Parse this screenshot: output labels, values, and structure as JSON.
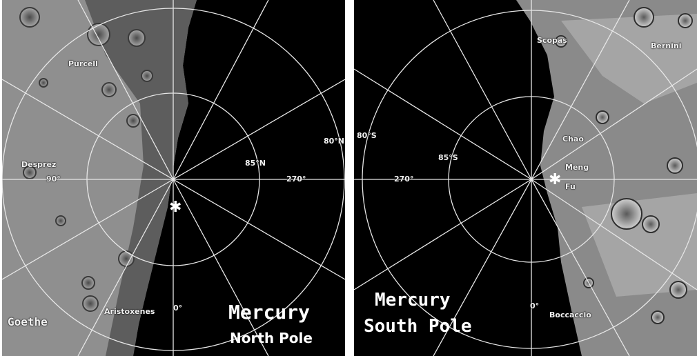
{
  "north_pole": {
    "title_line1": "Mercury",
    "title_line2": "North Pole",
    "latitude_labels": {
      "inner": "85°N",
      "outer": "80°N"
    },
    "longitude_labels": {
      "left": "90°",
      "right": "270°",
      "bottom": "0°"
    },
    "craters": {
      "goethe": "Goethe",
      "desprez": "Desprez",
      "aristoxenes": "Aristoxenes",
      "purcell": "Purcell"
    }
  },
  "south_pole": {
    "title_line1": "Mercury",
    "title_line2": "South Pole",
    "latitude_labels": {
      "inner": "85°S",
      "outer": "80°S"
    },
    "longitude_labels": {
      "left": "270°",
      "bottom": "0°"
    },
    "craters": {
      "scopas": "Scopas",
      "bernini": "Bernini",
      "chao": "Chao",
      "meng": "Meng",
      "fu": "Fu",
      "boccaccio": "Boccaccio"
    }
  },
  "colors": {
    "grid": "#e6e6e6",
    "terrain": "#8f8f8f",
    "space": "#000000"
  }
}
